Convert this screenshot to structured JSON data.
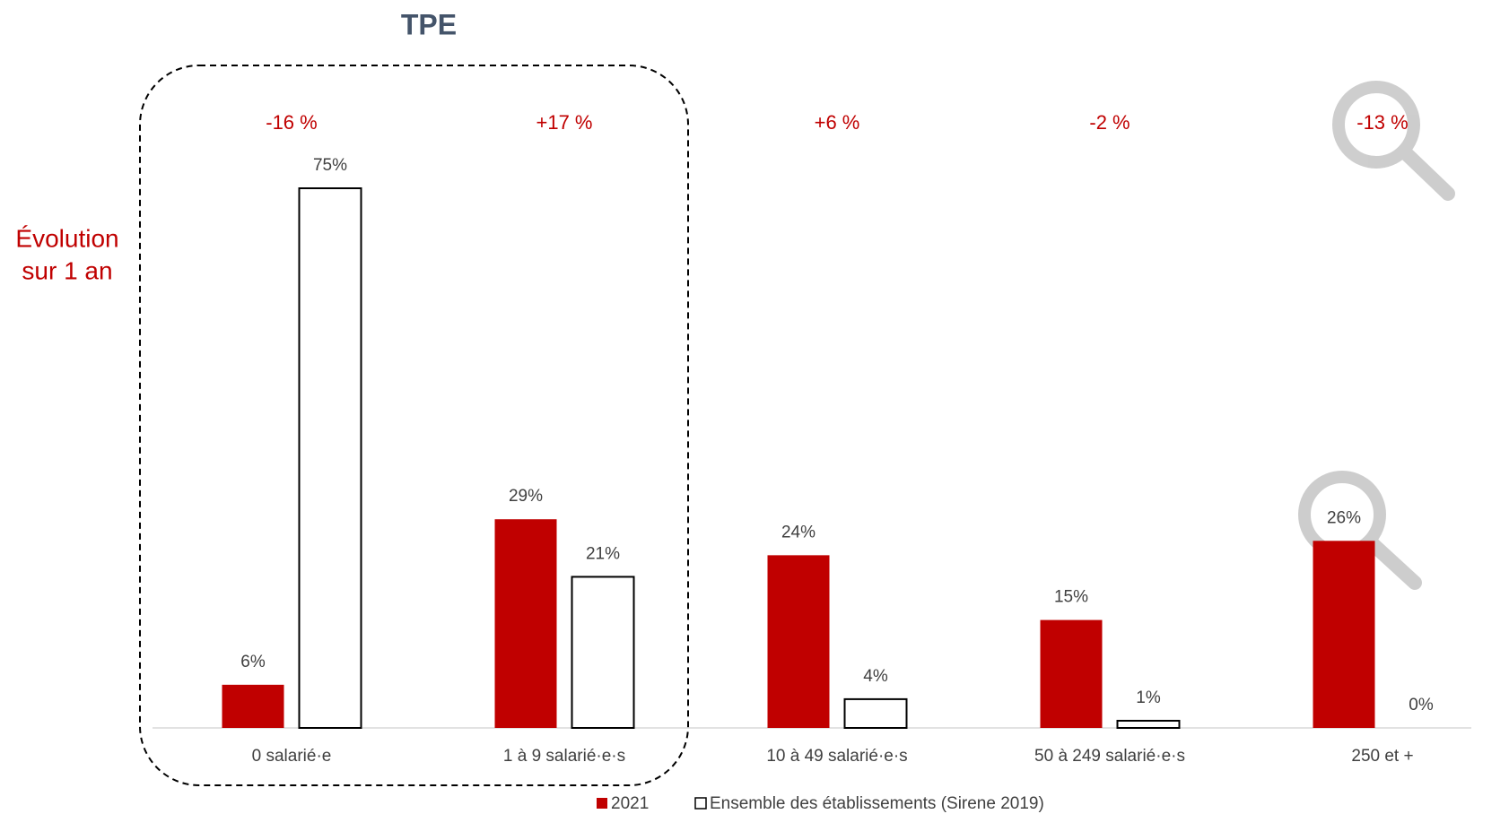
{
  "chart_data": {
    "type": "bar",
    "title": "TPE",
    "side_label": [
      "Évolution",
      "sur 1 an"
    ],
    "annotations": [
      "-16 %",
      "+17 %",
      "+6 %",
      "-2 %",
      "-13 %"
    ],
    "categories": [
      "0 salarié·e",
      "1 à 9 salarié·e·s",
      "10 à 49 salarié·e·s",
      "50 à 249 salarié·e·s",
      "250 et +"
    ],
    "series": [
      {
        "name": "2021",
        "color": "#c00000",
        "values": [
          6,
          29,
          24,
          15,
          26
        ],
        "value_labels": [
          "6%",
          "29%",
          "24%",
          "15%",
          "26%"
        ]
      },
      {
        "name": "Ensemble des établissements (Sirene 2019)",
        "color": "#ffffff",
        "values": [
          75,
          21,
          4,
          1,
          0
        ],
        "value_labels": [
          "75%",
          "21%",
          "4%",
          "1%",
          "0%"
        ]
      }
    ],
    "legend": "bottom"
  }
}
